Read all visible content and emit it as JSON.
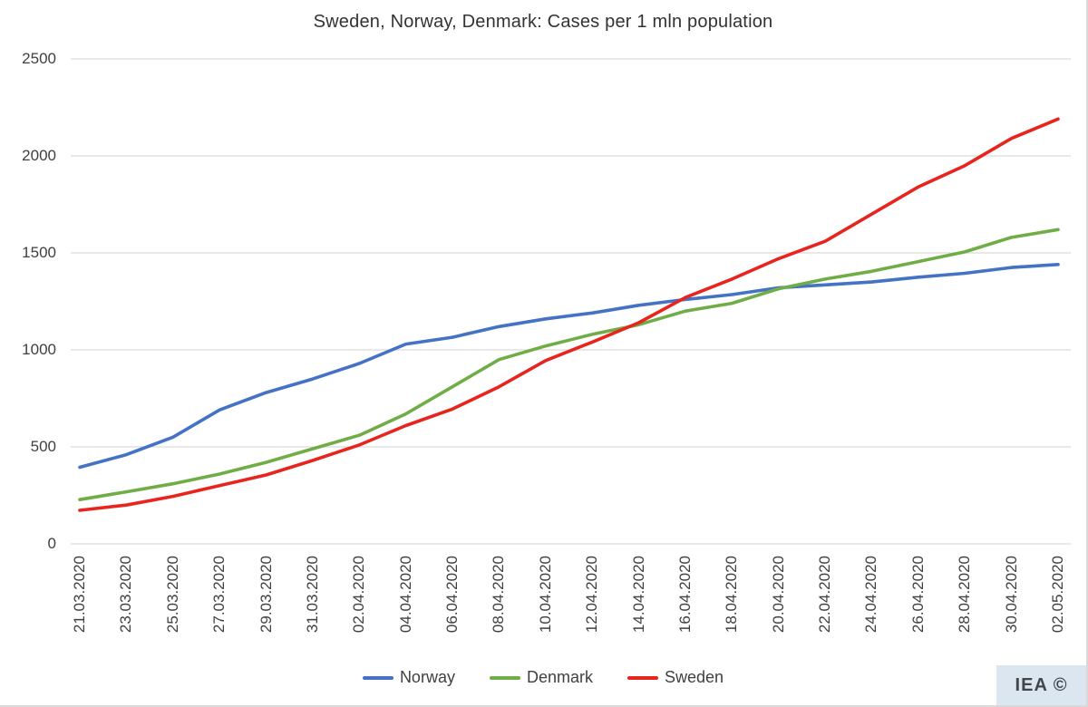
{
  "chart_data": {
    "type": "line",
    "title": "Sweden, Norway, Denmark: Cases per 1 mln population",
    "xlabel": "",
    "ylabel": "",
    "ylim": [
      0,
      2500
    ],
    "y_ticks": [
      0,
      500,
      1000,
      1500,
      2000,
      2500
    ],
    "grid": "horizontal",
    "legend_position": "bottom-center",
    "x_labels": [
      "21.03.2020",
      "23.03.2020",
      "25.03.2020",
      "27.03.2020",
      "29.03.2020",
      "31.03.2020",
      "02.04.2020",
      "04.04.2020",
      "06.04.2020",
      "08.04.2020",
      "10.04.2020",
      "12.04.2020",
      "14.04.2020",
      "16.04.2020",
      "18.04.2020",
      "20.04.2020",
      "22.04.2020",
      "24.04.2020",
      "26.04.2020",
      "28.04.2020",
      "30.04.2020",
      "02.05.2020"
    ],
    "series": [
      {
        "name": "Norway",
        "color": "#4472C4",
        "values": [
          395,
          460,
          550,
          690,
          780,
          850,
          930,
          1030,
          1065,
          1120,
          1160,
          1190,
          1230,
          1260,
          1285,
          1320,
          1335,
          1350,
          1375,
          1395,
          1425,
          1440
        ]
      },
      {
        "name": "Denmark",
        "color": "#70AD47",
        "values": [
          228,
          268,
          310,
          360,
          420,
          490,
          560,
          670,
          810,
          950,
          1020,
          1080,
          1130,
          1200,
          1240,
          1315,
          1365,
          1405,
          1455,
          1505,
          1580,
          1620
        ]
      },
      {
        "name": "Sweden",
        "color": "#E8241F",
        "values": [
          173,
          200,
          245,
          300,
          355,
          430,
          510,
          610,
          695,
          810,
          945,
          1040,
          1140,
          1270,
          1365,
          1470,
          1560,
          1700,
          1840,
          1950,
          2090,
          2190
        ]
      }
    ]
  },
  "watermark": {
    "label": "IEA ©",
    "bg": "#dce6f0"
  },
  "layout_colors": {
    "gridline": "#d9d9d9"
  }
}
